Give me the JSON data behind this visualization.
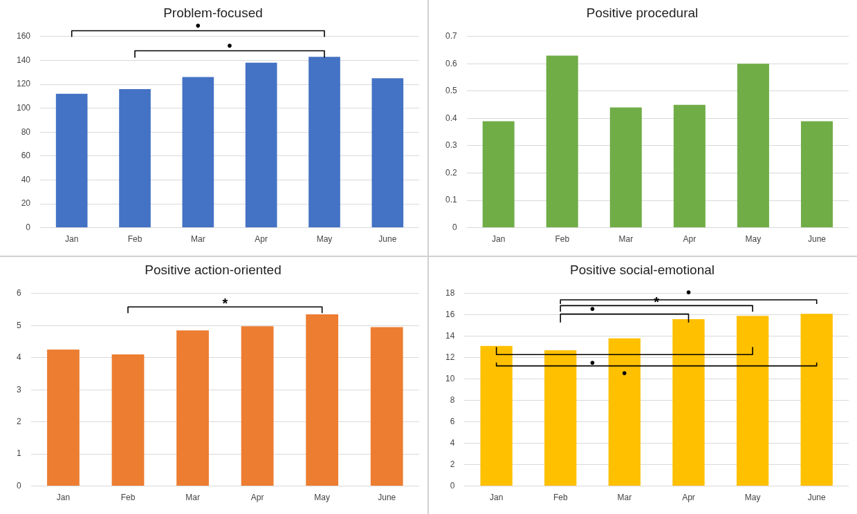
{
  "chart_data": [
    {
      "type": "bar",
      "title": "Problem-focused",
      "categories": [
        "Jan",
        "Feb",
        "Mar",
        "Apr",
        "May",
        "June"
      ],
      "values": [
        112,
        116,
        126,
        138,
        143,
        125
      ],
      "color": "#4472c4",
      "ylim": [
        0,
        160
      ],
      "yticks": [
        0,
        20,
        40,
        60,
        80,
        100,
        120,
        140,
        160
      ],
      "grid": "y",
      "annotations": [
        "•",
        "•"
      ]
    },
    {
      "type": "bar",
      "title": "Positive procedural",
      "categories": [
        "Jan",
        "Feb",
        "Mar",
        "Apr",
        "May",
        "June"
      ],
      "values": [
        0.39,
        0.63,
        0.44,
        0.45,
        0.6,
        0.39
      ],
      "color": "#70ad47",
      "ylim": [
        0,
        0.7
      ],
      "yticks": [
        0,
        0.1,
        0.2,
        0.3,
        0.4,
        0.5,
        0.6,
        0.7
      ],
      "grid": "y"
    },
    {
      "type": "bar",
      "title": "Positive action-oriented",
      "categories": [
        "Jan",
        "Feb",
        "Mar",
        "Apr",
        "May",
        "June"
      ],
      "values": [
        4.25,
        4.1,
        4.85,
        4.98,
        5.35,
        4.95
      ],
      "color": "#ed7d31",
      "ylim": [
        0,
        6
      ],
      "yticks": [
        0,
        1,
        2,
        3,
        4,
        5,
        6
      ],
      "grid": "y",
      "annotations": [
        "*"
      ]
    },
    {
      "type": "bar",
      "title": "Positive social-emotional",
      "categories": [
        "Jan",
        "Feb",
        "Mar",
        "Apr",
        "May",
        "June"
      ],
      "values": [
        13.1,
        12.7,
        13.8,
        15.6,
        15.9,
        16.1
      ],
      "color": "#ffc000",
      "ylim": [
        0,
        18
      ],
      "yticks": [
        0,
        2,
        4,
        6,
        8,
        10,
        12,
        14,
        16,
        18
      ],
      "grid": "y",
      "annotations": [
        "•",
        "*",
        "•",
        "•",
        "•"
      ]
    }
  ]
}
